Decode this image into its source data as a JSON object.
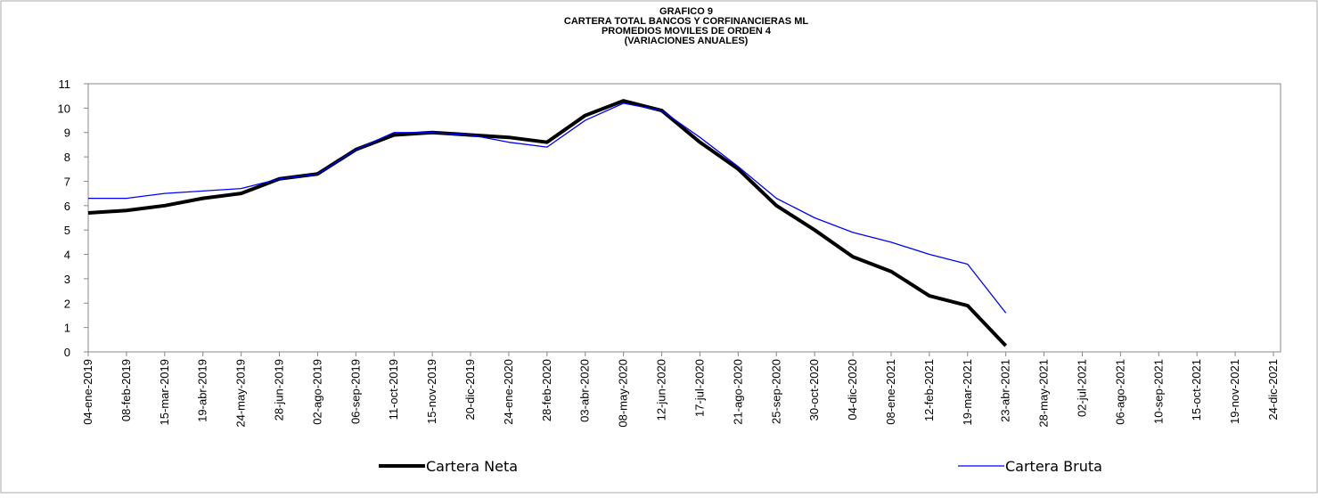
{
  "chart_data": {
    "type": "line",
    "title": [
      "GRAFICO 9",
      "CARTERA TOTAL BANCOS Y CORFINANCIERAS ML",
      "PROMEDIOS MOVILES DE ORDEN 4",
      "(VARIACIONES ANUALES)"
    ],
    "categories": [
      "04-ene-2019",
      "08-feb-2019",
      "15-mar-2019",
      "19-abr-2019",
      "24-may-2019",
      "28-jun-2019",
      "02-ago-2019",
      "06-sep-2019",
      "11-oct-2019",
      "15-nov-2019",
      "20-dic-2019",
      "24-ene-2020",
      "28-feb-2020",
      "03-abr-2020",
      "08-may-2020",
      "12-jun-2020",
      "17-jul-2020",
      "21-ago-2020",
      "25-sep-2020",
      "30-oct-2020",
      "04-dic-2020",
      "08-ene-2021",
      "12-feb-2021",
      "19-mar-2021",
      "23-abr-2021",
      "28-may-2021",
      "02-jul-2021",
      "06-ago-2021",
      "10-sep-2021",
      "15-oct-2021",
      "19-nov-2021",
      "24-dic-2021"
    ],
    "series": [
      {
        "name": "Cartera Neta",
        "color": "#000000",
        "width": 4,
        "values": [
          5.7,
          5.8,
          6.0,
          6.3,
          6.5,
          7.1,
          7.3,
          8.3,
          8.9,
          9.0,
          8.9,
          8.8,
          8.6,
          9.7,
          10.3,
          9.9,
          8.6,
          7.5,
          6.0,
          5.0,
          3.9,
          3.3,
          2.3,
          1.9,
          0.25,
          null,
          null,
          null,
          null,
          null,
          null,
          null
        ]
      },
      {
        "name": "Cartera Bruta",
        "color": "#0000ff",
        "width": 1.3,
        "values": [
          6.3,
          6.3,
          6.5,
          6.6,
          6.7,
          7.1,
          7.3,
          8.3,
          9.0,
          9.0,
          8.9,
          8.6,
          8.4,
          9.5,
          10.2,
          9.9,
          8.8,
          7.6,
          6.3,
          5.5,
          4.9,
          4.5,
          4.0,
          3.6,
          1.6,
          null,
          null,
          null,
          null,
          null,
          null,
          null
        ]
      }
    ],
    "ylim": [
      0,
      11
    ],
    "yticks": [
      0,
      1,
      2,
      3,
      4,
      5,
      6,
      7,
      8,
      9,
      10,
      11
    ],
    "legend": "bottom"
  }
}
